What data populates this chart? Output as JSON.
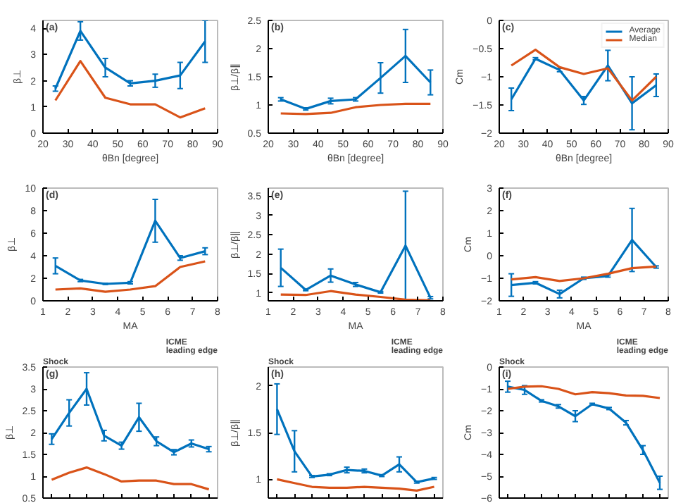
{
  "chart_data": [
    {
      "type": "line",
      "annotations": [
        "(a)"
      ],
      "xlabel": "θBn [degree]",
      "ylabel": "β⊥",
      "x": [
        25,
        35,
        45,
        55,
        65,
        75,
        85
      ],
      "xlim": [
        20,
        90
      ],
      "xticks": [
        20,
        30,
        40,
        50,
        60,
        70,
        80,
        90
      ],
      "ylim": [
        0,
        4.3
      ],
      "yticks": [
        0,
        1,
        2,
        3,
        4
      ],
      "marker": "none",
      "series": [
        {
          "color": "#0072bd",
          "values": [
            1.7,
            3.9,
            2.5,
            1.9,
            2.0,
            2.2,
            3.5
          ],
          "errors": [
            0.1,
            0.35,
            0.35,
            0.1,
            0.25,
            0.5,
            0.8
          ]
        },
        {
          "color": "#d95319",
          "values": [
            1.25,
            2.75,
            1.35,
            1.1,
            1.1,
            0.6,
            0.95
          ]
        }
      ]
    },
    {
      "type": "line",
      "annotations": [
        "(b)"
      ],
      "xlabel": "θBn [degree]",
      "ylabel": "β⊥/β∥",
      "x": [
        25,
        35,
        45,
        55,
        65,
        75,
        85
      ],
      "xlim": [
        20,
        90
      ],
      "xticks": [
        20,
        30,
        40,
        50,
        60,
        70,
        80,
        90
      ],
      "ylim": [
        0.5,
        2.5
      ],
      "yticks": [
        0.5,
        1,
        1.5,
        2,
        2.5
      ],
      "marker": "none",
      "series": [
        {
          "color": "#0072bd",
          "values": [
            1.1,
            0.93,
            1.07,
            1.1,
            1.48,
            1.87,
            1.4
          ],
          "errors": [
            0.03,
            0.02,
            0.05,
            0.03,
            0.27,
            0.47,
            0.22
          ]
        },
        {
          "color": "#d95319",
          "values": [
            0.85,
            0.84,
            0.86,
            0.96,
            1.0,
            1.02,
            1.02
          ]
        }
      ]
    },
    {
      "type": "line",
      "annotations": [
        "(c)"
      ],
      "xlabel": "θBn [degree]",
      "ylabel": "Cm",
      "x": [
        25,
        35,
        45,
        55,
        65,
        75,
        85
      ],
      "xlim": [
        20,
        90
      ],
      "xticks": [
        20,
        30,
        40,
        50,
        60,
        70,
        80,
        90
      ],
      "ylim": [
        -2,
        0
      ],
      "yticks": [
        -2,
        -1.5,
        -1,
        -0.5,
        0
      ],
      "marker": "none",
      "legend": "top right",
      "series": [
        {
          "name": "Average",
          "color": "#0072bd",
          "values": [
            -1.4,
            -0.68,
            -0.88,
            -1.42,
            -0.8,
            -1.47,
            -1.15
          ],
          "errors": [
            0.2,
            0.02,
            0.03,
            0.07,
            0.27,
            0.47,
            0.2
          ]
        },
        {
          "name": "Median",
          "color": "#d95319",
          "values": [
            -0.8,
            -0.52,
            -0.83,
            -0.95,
            -0.85,
            -1.42,
            -1.0
          ]
        }
      ]
    },
    {
      "type": "line",
      "annotations": [
        "(d)"
      ],
      "xlabel": "MA",
      "ylabel": "β⊥",
      "x": [
        1.5,
        2.5,
        3.5,
        4.5,
        5.5,
        6.5,
        7.5
      ],
      "xlim": [
        1,
        8
      ],
      "xticks": [
        1,
        2,
        3,
        4,
        5,
        6,
        7,
        8
      ],
      "ylim": [
        0,
        10
      ],
      "yticks": [
        0,
        2,
        4,
        6,
        8,
        10
      ],
      "marker": "none",
      "series": [
        {
          "color": "#0072bd",
          "values": [
            3.1,
            1.8,
            1.5,
            1.6,
            7.1,
            3.8,
            4.4
          ],
          "errors": [
            0.7,
            0.1,
            0.05,
            0.1,
            1.9,
            0.2,
            0.3
          ]
        },
        {
          "color": "#d95319",
          "values": [
            1.0,
            1.1,
            0.8,
            1.0,
            1.3,
            3.0,
            3.5
          ]
        }
      ]
    },
    {
      "type": "line",
      "annotations": [
        "(e)"
      ],
      "xlabel": "MA",
      "ylabel": "β⊥/β∥",
      "x": [
        1.5,
        2.5,
        3.5,
        4.5,
        5.5,
        6.5,
        7.5
      ],
      "xlim": [
        1,
        8
      ],
      "xticks": [
        1,
        2,
        3,
        4,
        5,
        6,
        7,
        8
      ],
      "ylim": [
        0.8,
        3.7
      ],
      "yticks": [
        1,
        1.5,
        2,
        2.5,
        3,
        3.5
      ],
      "marker": "none",
      "series": [
        {
          "color": "#0072bd",
          "values": [
            1.65,
            1.08,
            1.45,
            1.22,
            1.02,
            2.22,
            0.88
          ],
          "errors": [
            0.48,
            0.02,
            0.17,
            0.05,
            0.02,
            1.4,
            0.03
          ]
        },
        {
          "color": "#d95319",
          "values": [
            0.96,
            0.95,
            1.05,
            0.96,
            0.9,
            0.83,
            0.81
          ]
        }
      ]
    },
    {
      "type": "line",
      "annotations": [
        "(f)"
      ],
      "xlabel": "MA",
      "ylabel": "Cm",
      "x": [
        1.5,
        2.5,
        3.5,
        4.5,
        5.5,
        6.5,
        7.5
      ],
      "xlim": [
        1,
        8
      ],
      "xticks": [
        1,
        2,
        3,
        4,
        5,
        6,
        7,
        8
      ],
      "ylim": [
        -2,
        3
      ],
      "yticks": [
        -2,
        -1,
        0,
        1,
        2,
        3
      ],
      "marker": "none",
      "series": [
        {
          "color": "#0072bd",
          "values": [
            -1.3,
            -1.2,
            -1.7,
            -1.0,
            -0.9,
            0.7,
            -0.5
          ],
          "errors": [
            0.5,
            0.05,
            0.17,
            0.05,
            0.05,
            1.4,
            0.05
          ]
        },
        {
          "color": "#d95319",
          "values": [
            -1.05,
            -0.95,
            -1.12,
            -1.0,
            -0.8,
            -0.55,
            -0.48
          ]
        }
      ]
    },
    {
      "type": "line",
      "annotations": [
        "(g)",
        "Shock",
        "ICME\nleading edge"
      ],
      "ylabel": "β⊥",
      "categories": [
        null,
        null,
        null,
        null,
        null,
        null,
        null,
        null,
        null,
        null
      ],
      "ylim": [
        0.5,
        3.5
      ],
      "yticks": [
        0.5,
        1,
        1.5,
        2,
        2.5,
        3,
        3.5
      ],
      "tick_labels": "y",
      "marker": "none",
      "series": [
        {
          "color": "#0072bd",
          "values": [
            1.85,
            2.45,
            3.0,
            1.93,
            1.7,
            2.35,
            1.8,
            1.55,
            1.75,
            1.62
          ],
          "errors": [
            0.12,
            0.3,
            0.37,
            0.12,
            0.08,
            0.32,
            0.1,
            0.06,
            0.08,
            0.06
          ]
        },
        {
          "color": "#d95319",
          "values": [
            0.92,
            1.08,
            1.2,
            1.05,
            0.88,
            0.9,
            0.9,
            0.82,
            0.82,
            0.7
          ]
        }
      ]
    },
    {
      "type": "line",
      "annotations": [
        "(h)",
        "Shock",
        "ICME\nleading edge"
      ],
      "ylabel": "β⊥/β∥",
      "categories": [
        null,
        null,
        null,
        null,
        null,
        null,
        null,
        null,
        null,
        null
      ],
      "ylim": [
        0.8,
        2.2
      ],
      "yticks": [
        1,
        1.5,
        2
      ],
      "tick_labels": "y",
      "marker": "none",
      "series": [
        {
          "color": "#0072bd",
          "values": [
            1.75,
            1.3,
            1.03,
            1.05,
            1.1,
            1.09,
            1.04,
            1.16,
            0.97,
            1.01
          ],
          "errors": [
            0.27,
            0.22,
            0.01,
            0.01,
            0.03,
            0.02,
            0.01,
            0.08,
            0.01,
            0.01
          ]
        },
        {
          "color": "#d95319",
          "values": [
            1.0,
            0.96,
            0.92,
            0.91,
            0.91,
            0.92,
            0.91,
            0.9,
            0.88,
            0.92
          ]
        }
      ]
    },
    {
      "type": "line",
      "annotations": [
        "(i)",
        "Shock",
        "ICME\nleading edge"
      ],
      "ylabel": "Cm",
      "categories": [
        null,
        null,
        null,
        null,
        null,
        null,
        null,
        null,
        null,
        null
      ],
      "ylim": [
        -6,
        0
      ],
      "yticks": [
        -6,
        -5,
        -4,
        -3,
        -2,
        -1,
        0
      ],
      "tick_labels": "y",
      "marker": "none",
      "series": [
        {
          "color": "#0072bd",
          "values": [
            -0.9,
            -1.05,
            -1.55,
            -1.8,
            -2.25,
            -1.7,
            -1.9,
            -2.55,
            -3.8,
            -5.3
          ],
          "errors": [
            0.25,
            0.2,
            0.05,
            0.08,
            0.25,
            0.04,
            0.05,
            0.1,
            0.2,
            0.3
          ]
        },
        {
          "color": "#d95319",
          "values": [
            -1.0,
            -0.9,
            -0.88,
            -1.0,
            -1.25,
            -1.15,
            -1.2,
            -1.3,
            -1.32,
            -1.42
          ]
        }
      ]
    }
  ]
}
